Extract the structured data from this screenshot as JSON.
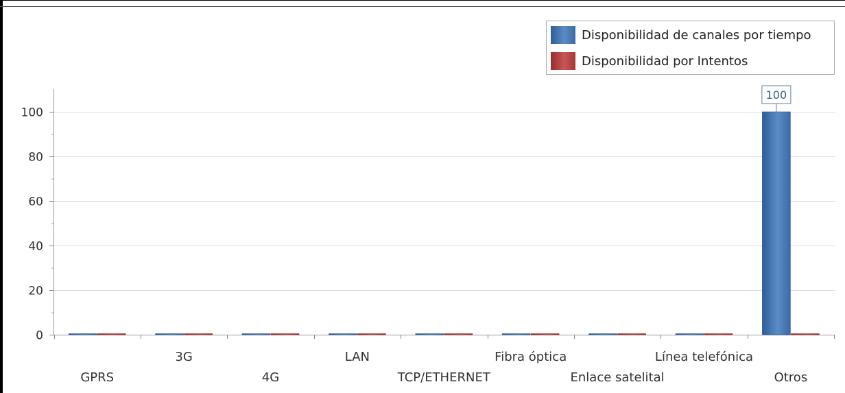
{
  "chart_data": {
    "type": "bar",
    "categories": [
      "GPRS",
      "3G",
      "4G",
      "LAN",
      "TCP/ETHERNET",
      "Fibra óptica",
      "Enlace satelital",
      "Línea telefónica",
      "Otros"
    ],
    "series": [
      {
        "name": "Disponibilidad de canales por tiempo",
        "values": [
          0,
          0,
          0,
          0,
          0,
          0,
          0,
          0,
          100
        ],
        "color": "#4a7ab5"
      },
      {
        "name": "Disponibilidad por Intentos",
        "values": [
          0,
          0,
          0,
          0,
          0,
          0,
          0,
          0,
          0
        ],
        "color": "#b94444"
      }
    ],
    "y_ticks": [
      0,
      20,
      40,
      60,
      80,
      100
    ],
    "ylim": [
      0,
      110
    ],
    "data_labels": [
      {
        "category": "Otros",
        "series": "Disponibilidad de canales por tiempo",
        "text": "100"
      }
    ],
    "grid": true,
    "legend_position": "top-right"
  }
}
